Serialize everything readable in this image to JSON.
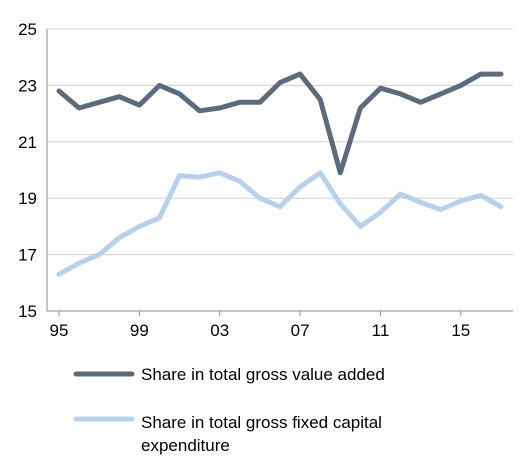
{
  "chart_data": {
    "type": "line",
    "title": "",
    "xlabel": "",
    "ylabel": "",
    "ylim": [
      15,
      25
    ],
    "yticks": [
      "25",
      "23",
      "21",
      "19",
      "17",
      "15"
    ],
    "xticks": [
      {
        "label": "95",
        "x": 1995
      },
      {
        "label": "99",
        "x": 1999
      },
      {
        "label": "03",
        "x": 2003
      },
      {
        "label": "07",
        "x": 2007
      },
      {
        "label": "11",
        "x": 2011
      },
      {
        "label": "15",
        "x": 2015
      }
    ],
    "grid": "horizontal",
    "x": [
      1995,
      1996,
      1997,
      1998,
      1999,
      2000,
      2001,
      2002,
      2003,
      2004,
      2005,
      2006,
      2007,
      2008,
      2009,
      2010,
      2011,
      2012,
      2013,
      2014,
      2015,
      2016,
      2017
    ],
    "series": [
      {
        "name": "Share in total gross value added",
        "color": "#5b6b7c",
        "values": [
          22.8,
          22.2,
          22.4,
          22.6,
          22.3,
          23.0,
          22.7,
          22.1,
          22.2,
          22.4,
          22.4,
          23.1,
          23.4,
          22.5,
          19.9,
          22.2,
          22.9,
          22.7,
          22.4,
          22.7,
          23.0,
          23.4,
          23.4
        ]
      },
      {
        "name": "Share in total gross fixed capital expenditure",
        "name_lines": [
          "Share in total gross fixed capital",
          "expenditure"
        ],
        "color": "#b8d0ea",
        "values": [
          16.3,
          16.7,
          17.0,
          17.6,
          18.0,
          18.3,
          19.8,
          19.75,
          19.9,
          19.6,
          19.0,
          18.7,
          19.4,
          19.9,
          18.8,
          18.0,
          18.5,
          19.15,
          18.85,
          18.6,
          18.9,
          19.1,
          18.7
        ]
      }
    ],
    "legend_position": "bottom"
  }
}
